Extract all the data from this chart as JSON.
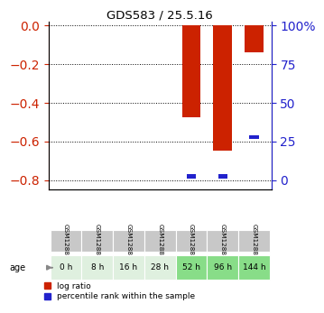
{
  "title": "GDS583 / 25.5.16",
  "samples": [
    "GSM12883",
    "GSM12884",
    "GSM12885",
    "GSM12886",
    "GSM12887",
    "GSM12888",
    "GSM12889"
  ],
  "age_labels": [
    "0 h",
    "8 h",
    "16 h",
    "28 h",
    "52 h",
    "96 h",
    "144 h"
  ],
  "log_ratio": [
    0.0,
    0.0,
    0.0,
    0.0,
    -0.475,
    -0.645,
    -0.14
  ],
  "percentile_rank": [
    0.0,
    0.0,
    0.0,
    0.0,
    2.5,
    2.5,
    28.0
  ],
  "ylim_left": [
    -0.85,
    0.02
  ],
  "ylim_right": [
    -0.85,
    0.02
  ],
  "yticks_left": [
    0,
    -0.2,
    -0.4,
    -0.6,
    -0.8
  ],
  "yticks_right": [
    0,
    -0.2,
    -0.4,
    -0.6,
    -0.8
  ],
  "ytick_labels_right": [
    "100%",
    "75",
    "50",
    "25",
    "0"
  ],
  "bar_width": 0.6,
  "red_color": "#cc2200",
  "blue_color": "#2222cc",
  "age_bg_colors": [
    "#dff0df",
    "#dff0df",
    "#dff0df",
    "#dff0df",
    "#88dd88",
    "#88dd88",
    "#88dd88"
  ],
  "sample_bg": "#c8c8c8",
  "left_axis_color": "#cc2200",
  "right_axis_color": "#2222cc",
  "legend_items": [
    "log ratio",
    "percentile rank within the sample"
  ],
  "legend_colors": [
    "#cc2200",
    "#2222cc"
  ],
  "blue_bar_height": 0.02
}
